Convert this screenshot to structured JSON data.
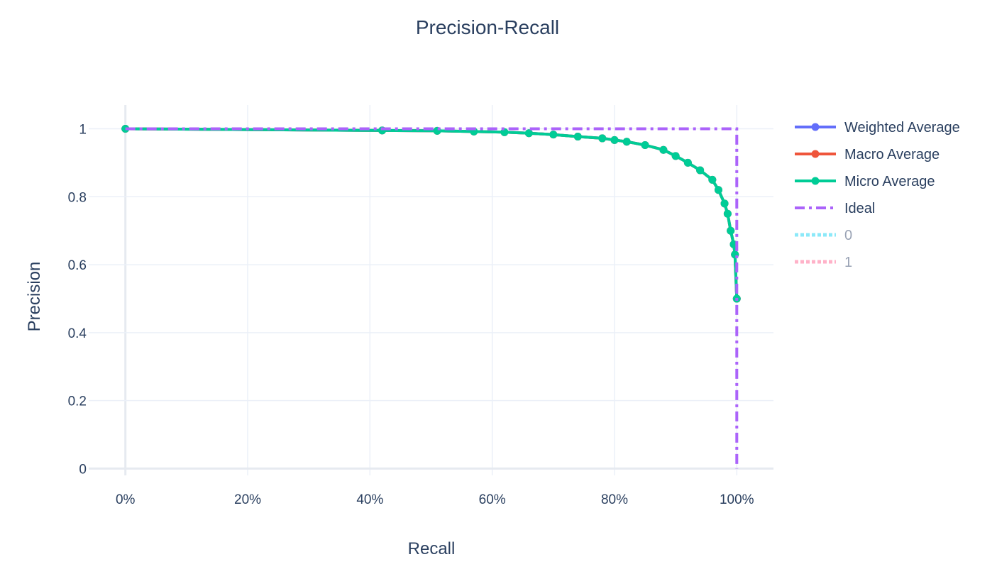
{
  "chart_data": {
    "type": "line",
    "title": "Precision-Recall",
    "xlabel": "Recall",
    "ylabel": "Precision",
    "xlim": [
      -0.06,
      1.06
    ],
    "ylim": [
      -0.02,
      1.07
    ],
    "x_ticks": [
      "0%",
      "20%",
      "40%",
      "60%",
      "80%",
      "100%"
    ],
    "x_tick_values": [
      0,
      0.2,
      0.4,
      0.6,
      0.8,
      1.0
    ],
    "y_ticks": [
      "0",
      "0.2",
      "0.4",
      "0.6",
      "0.8",
      "1"
    ],
    "y_tick_values": [
      0,
      0.2,
      0.4,
      0.6,
      0.8,
      1.0
    ],
    "grid": true,
    "legend_position": "right",
    "series": [
      {
        "name": "Weighted Average",
        "color": "#636efa",
        "style": "solid-markers",
        "x": [
          0,
          0.42,
          0.51,
          0.57,
          0.62,
          0.66,
          0.7,
          0.74,
          0.78,
          0.8,
          0.82,
          0.85,
          0.88,
          0.9,
          0.92,
          0.94,
          0.96,
          0.97,
          0.98,
          0.985,
          0.99,
          0.995,
          0.997,
          1.0
        ],
        "y": [
          1.0,
          0.995,
          0.994,
          0.992,
          0.99,
          0.987,
          0.983,
          0.977,
          0.972,
          0.967,
          0.962,
          0.952,
          0.938,
          0.92,
          0.9,
          0.878,
          0.85,
          0.82,
          0.78,
          0.75,
          0.7,
          0.66,
          0.63,
          0.5
        ]
      },
      {
        "name": "Macro Average",
        "color": "#ef553b",
        "style": "solid-markers",
        "x": [
          0,
          0.42,
          0.51,
          0.57,
          0.62,
          0.66,
          0.7,
          0.74,
          0.78,
          0.8,
          0.82,
          0.85,
          0.88,
          0.9,
          0.92,
          0.94,
          0.96,
          0.97,
          0.98,
          0.985,
          0.99,
          0.995,
          0.997,
          1.0
        ],
        "y": [
          1.0,
          0.995,
          0.994,
          0.992,
          0.99,
          0.987,
          0.983,
          0.977,
          0.972,
          0.967,
          0.962,
          0.952,
          0.938,
          0.92,
          0.9,
          0.878,
          0.85,
          0.82,
          0.78,
          0.75,
          0.7,
          0.66,
          0.63,
          0.5
        ]
      },
      {
        "name": "Micro Average",
        "color": "#00cc96",
        "style": "solid-markers",
        "x": [
          0,
          0.42,
          0.51,
          0.57,
          0.62,
          0.66,
          0.7,
          0.74,
          0.78,
          0.8,
          0.82,
          0.85,
          0.88,
          0.9,
          0.92,
          0.94,
          0.96,
          0.97,
          0.98,
          0.985,
          0.99,
          0.995,
          0.997,
          1.0
        ],
        "y": [
          1.0,
          0.995,
          0.994,
          0.992,
          0.99,
          0.987,
          0.983,
          0.977,
          0.972,
          0.967,
          0.962,
          0.952,
          0.938,
          0.92,
          0.9,
          0.878,
          0.85,
          0.82,
          0.78,
          0.75,
          0.7,
          0.66,
          0.63,
          0.5
        ]
      },
      {
        "name": "Ideal",
        "color": "#ab63fa",
        "style": "dashdot",
        "x": [
          0,
          1,
          1
        ],
        "y": [
          1,
          1,
          0
        ]
      },
      {
        "name": "0",
        "color": "#19d3f3",
        "style": "dotted-hidden",
        "x": [],
        "y": []
      },
      {
        "name": "1",
        "color": "#ff6692",
        "style": "dotted-hidden",
        "x": [],
        "y": []
      }
    ]
  }
}
